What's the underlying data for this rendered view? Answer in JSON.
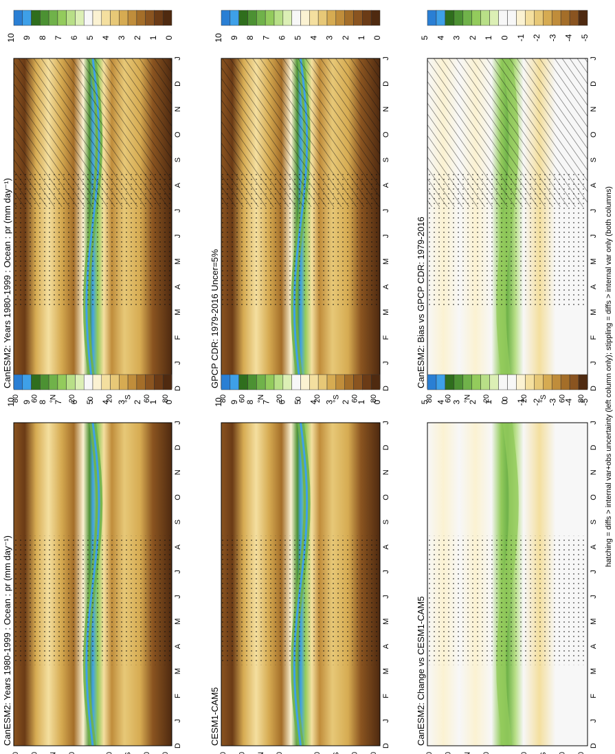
{
  "footnote": "hatching = diffs > internal var+obs uncertainty (left column only); stippling = diffs > internal var only (both columns)",
  "month_ticks": [
    "D",
    "J",
    "F",
    "M",
    "A",
    "M",
    "J",
    "J",
    "A",
    "S",
    "O",
    "N",
    "D",
    "J"
  ],
  "lat_ticks": [
    "80",
    "60",
    "°N",
    "20",
    "0",
    "20",
    "°S",
    "60",
    "80"
  ],
  "palettes": {
    "precip": [
      "#2a7fd4",
      "#3ea0e8",
      "#2f6e1d",
      "#4c9133",
      "#70b24a",
      "#93cb5c",
      "#b8df87",
      "#dcefb5",
      "#f7f7f7",
      "#fbf2d2",
      "#f4df9f",
      "#e7c877",
      "#d6ab52",
      "#c08d3b",
      "#a46e29",
      "#8a5420",
      "#6b3b16",
      "#4f2a10"
    ],
    "diff": [
      "#2a7fd4",
      "#3ea0e8",
      "#2f6e1d",
      "#4c9133",
      "#70b24a",
      "#93cb5c",
      "#b8df87",
      "#dcefb5",
      "#f7f7f7",
      "#f7f7f7",
      "#fbf2d2",
      "#f4df9f",
      "#e7c877",
      "#d6ab52",
      "#c08d3b",
      "#a46e29",
      "#8a5420",
      "#4f2a10"
    ]
  },
  "chart_data": [
    {
      "type": "heatmap",
      "title": "CanESM2: Years 1980-1999 : Ocean : pr (mm day⁻¹)",
      "x_axis": "month (D to J)",
      "y_axis": "latitude",
      "colorbar_ticks": [
        "10",
        "9",
        "8",
        "7",
        "6",
        "5",
        "4",
        "3",
        "2",
        "1",
        "0"
      ],
      "colorbar_range": [
        0,
        10
      ],
      "hatching": true,
      "stippling": true
    },
    {
      "type": "heatmap",
      "title": "CanESM2: Years 1980-1999 : Ocean : pr (mm day⁻¹)",
      "colorbar_ticks": [
        "10",
        "9",
        "8",
        "7",
        "6",
        "5",
        "4",
        "3",
        "2",
        "1",
        "0"
      ],
      "colorbar_range": [
        0,
        10
      ],
      "hatching": false,
      "stippling": true
    },
    {
      "type": "heatmap",
      "title": "GPCP CDR: 1979-2016 Uncer=5%",
      "colorbar_ticks": [
        "10",
        "9",
        "8",
        "7",
        "6",
        "5",
        "4",
        "3",
        "2",
        "1",
        "0"
      ],
      "colorbar_range": [
        0,
        10
      ],
      "hatching": true,
      "stippling": true
    },
    {
      "type": "heatmap",
      "title": "CESM1-CAM5",
      "colorbar_ticks": [
        "10",
        "9",
        "8",
        "7",
        "6",
        "5",
        "4",
        "3",
        "2",
        "1",
        "0"
      ],
      "colorbar_range": [
        0,
        10
      ],
      "hatching": false,
      "stippling": true
    },
    {
      "type": "heatmap",
      "title": "CanESM2: Bias vs GPCP CDR: 1979-2016",
      "colorbar_ticks": [
        "5",
        "4",
        "3",
        "2",
        "1",
        "0",
        "-1",
        "-2",
        "-3",
        "-4",
        "-5"
      ],
      "colorbar_range": [
        -5,
        5
      ],
      "hatching": true,
      "stippling": true
    },
    {
      "type": "heatmap",
      "title": "CanESM2: Change vs CESM1-CAM5",
      "colorbar_ticks": [
        "5",
        "4",
        "3",
        "2",
        "1",
        "0",
        "-1",
        "-2",
        "-3",
        "-4",
        "-5"
      ],
      "colorbar_range": [
        -5,
        5
      ],
      "hatching": false,
      "stippling": true
    }
  ]
}
